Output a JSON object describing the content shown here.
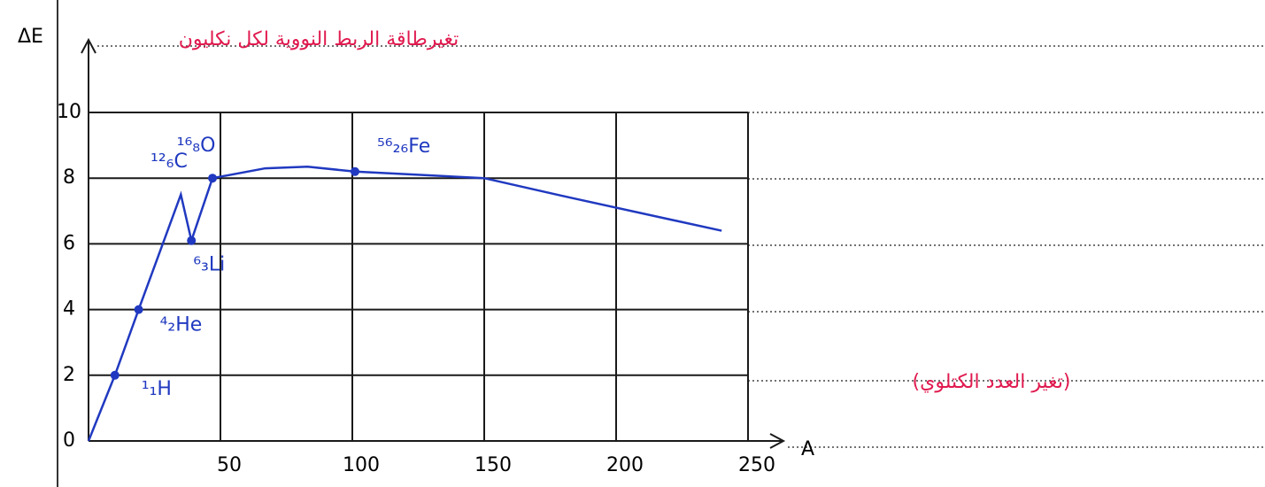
{
  "chart_data": {
    "type": "line",
    "title": "تغيرطاقة الربط النووية لكل نكليون",
    "x_label": "A",
    "y_label": "ΔE",
    "x_note": "(تغير العدد الكتلوي)",
    "x": [
      0,
      10,
      19,
      35,
      39,
      47,
      67,
      83,
      101,
      150,
      183,
      240
    ],
    "series": [
      {
        "color": "#2039c0",
        "values": [
          0,
          2,
          4,
          7.5,
          6.1,
          8,
          8.3,
          8.35,
          8.2,
          8.0,
          7.4,
          6.4
        ]
      }
    ],
    "annotations": [
      {
        "text": "¹₁H",
        "x": 10,
        "y": 2,
        "marker": true
      },
      {
        "text": "⁴₂He",
        "x": 19,
        "y": 4,
        "marker": true
      },
      {
        "text": "⁶₃Li",
        "x": 39,
        "y": 6.1,
        "marker": true
      },
      {
        "text": "¹²₆C",
        "x": 47,
        "y": 8,
        "marker": true
      },
      {
        "text": "¹⁶₈O",
        "x": 67,
        "y": 8.3,
        "marker": false
      },
      {
        "text": "⁵⁶₂₆Fe",
        "x": 101,
        "y": 8.2,
        "marker": true
      }
    ],
    "xlim": [
      0,
      250
    ],
    "ylim": [
      0,
      10
    ],
    "xticks": [
      50,
      100,
      150,
      200,
      250
    ],
    "yticks": [
      0,
      2,
      4,
      6,
      8,
      10
    ],
    "grid": true,
    "note_color": "#e01a4f",
    "axis_color": "#1a1a1a"
  }
}
